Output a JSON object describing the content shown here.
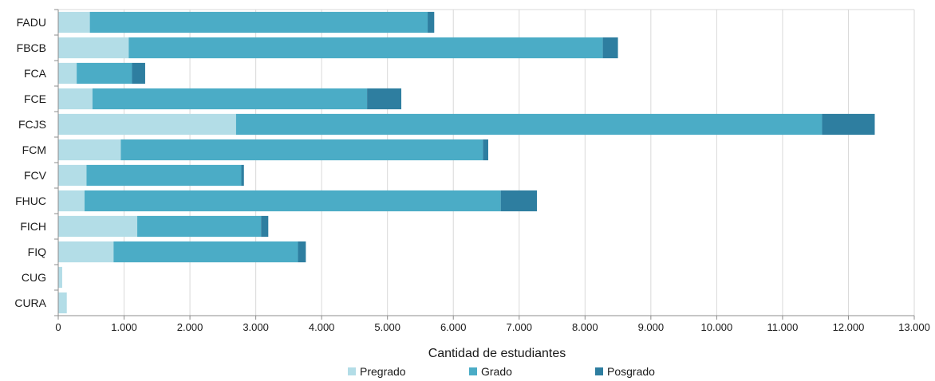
{
  "chart_data": {
    "type": "bar",
    "orientation": "horizontal",
    "stacked": true,
    "categories": [
      "FADU",
      "FBCB",
      "FCA",
      "FCE",
      "FCJS",
      "FCM",
      "FCV",
      "FHUC",
      "FICH",
      "FIQ",
      "CUG",
      "CURA"
    ],
    "series": [
      {
        "name": "Pregrado",
        "color": "#b3dde7",
        "values": [
          480,
          1070,
          280,
          520,
          2700,
          950,
          430,
          400,
          1200,
          840,
          60,
          130
        ]
      },
      {
        "name": "Grado",
        "color": "#4bacc6",
        "values": [
          5130,
          7200,
          840,
          4170,
          8900,
          5500,
          2350,
          6320,
          1880,
          2800,
          0,
          0
        ]
      },
      {
        "name": "Posgrado",
        "color": "#2e7ea0",
        "values": [
          100,
          230,
          200,
          520,
          800,
          80,
          40,
          550,
          110,
          120,
          0,
          0
        ]
      }
    ],
    "xlabel": "Cantidad de estudiantes",
    "xlim": [
      0,
      13000
    ],
    "xticks": [
      0,
      1000,
      2000,
      3000,
      4000,
      5000,
      6000,
      7000,
      8000,
      9000,
      10000,
      11000,
      12000,
      13000
    ],
    "xtick_labels": [
      "0",
      "1.000",
      "2.000",
      "3.000",
      "4.000",
      "5.000",
      "6.000",
      "7.000",
      "8.000",
      "9.000",
      "10.000",
      "11.000",
      "12.000",
      "13.000"
    ],
    "grid": "vertical",
    "legend_position": "bottom"
  },
  "colors": {
    "grid": "#d9d9d9",
    "axis": "#8c8c8c"
  }
}
